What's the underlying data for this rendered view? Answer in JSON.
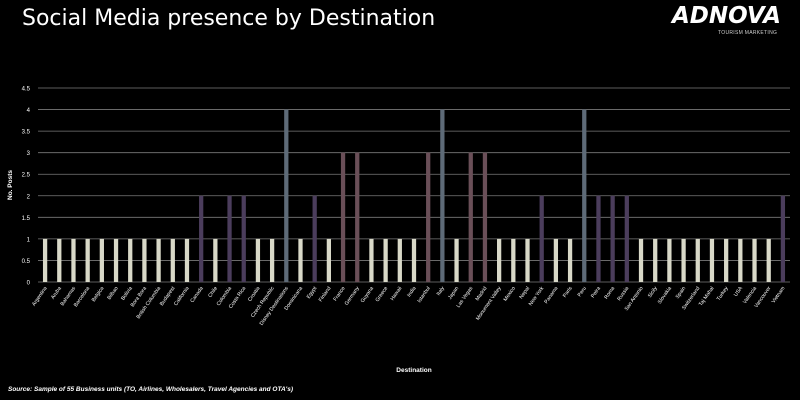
{
  "title": "Social Media presence by Destination",
  "logo": {
    "main": "ADNOVA",
    "sub": "TOURISM MARKETING"
  },
  "source": "Source: Sample of 55 Business units (TO, Airlines, Wholesalers, Travel Agencies and OTA's)",
  "colors": {
    "background": "#000000",
    "grid": "#7a7a7a",
    "text": "#ffffff",
    "bar_light": "#d9d9c8",
    "bar_steel": "#5e6b78",
    "bar_purple": "#4b3d5c",
    "bar_brown": "#6a4f58"
  },
  "chart_data": {
    "type": "bar",
    "title": "Social Media presence by Destination",
    "xlabel": "Destination",
    "ylabel": "No. Posts",
    "ylim": [
      0,
      4.5
    ],
    "yticks": [
      0,
      0.5,
      1,
      1.5,
      2,
      2.5,
      3,
      3.5,
      4,
      4.5
    ],
    "grid": true,
    "categories": [
      "Argentina",
      "Aruba",
      "Bahamas",
      "Barcelona",
      "Belgica",
      "Bilbao",
      "Bolivia",
      "Bora Bora",
      "British Columbia",
      "Budapest",
      "California",
      "Canada",
      "Chile",
      "Colombia",
      "Costa Rica",
      "Croatia",
      "Czech Republic",
      "Disney Destinations",
      "Dominicana",
      "Egypt",
      "Finland",
      "France",
      "Germany",
      "Guyana",
      "Greece",
      "Hawaii",
      "India",
      "Istanbul",
      "Italy",
      "Japan",
      "Las Vegas",
      "Madrid",
      "Monument Valley",
      "Mexico",
      "Nepal",
      "New York",
      "Panama",
      "Paris",
      "Peru",
      "Petra",
      "Roma",
      "Russia",
      "San Antonio",
      "Sicily",
      "Slovakia",
      "Spain",
      "Switzerland",
      "Taj Mahal",
      "Turkey",
      "USA",
      "Valencia",
      "Vancouver",
      "Vietnam"
    ],
    "values": [
      1,
      1,
      1,
      1,
      1,
      1,
      1,
      1,
      1,
      1,
      1,
      2,
      1,
      2,
      2,
      1,
      1,
      4,
      1,
      2,
      1,
      3,
      3,
      1,
      1,
      1,
      1,
      3,
      4,
      1,
      3,
      3,
      1,
      1,
      1,
      2,
      1,
      1,
      4,
      2,
      2,
      2,
      1,
      1,
      1,
      1,
      1,
      1,
      1,
      1,
      1,
      1,
      2
    ]
  }
}
